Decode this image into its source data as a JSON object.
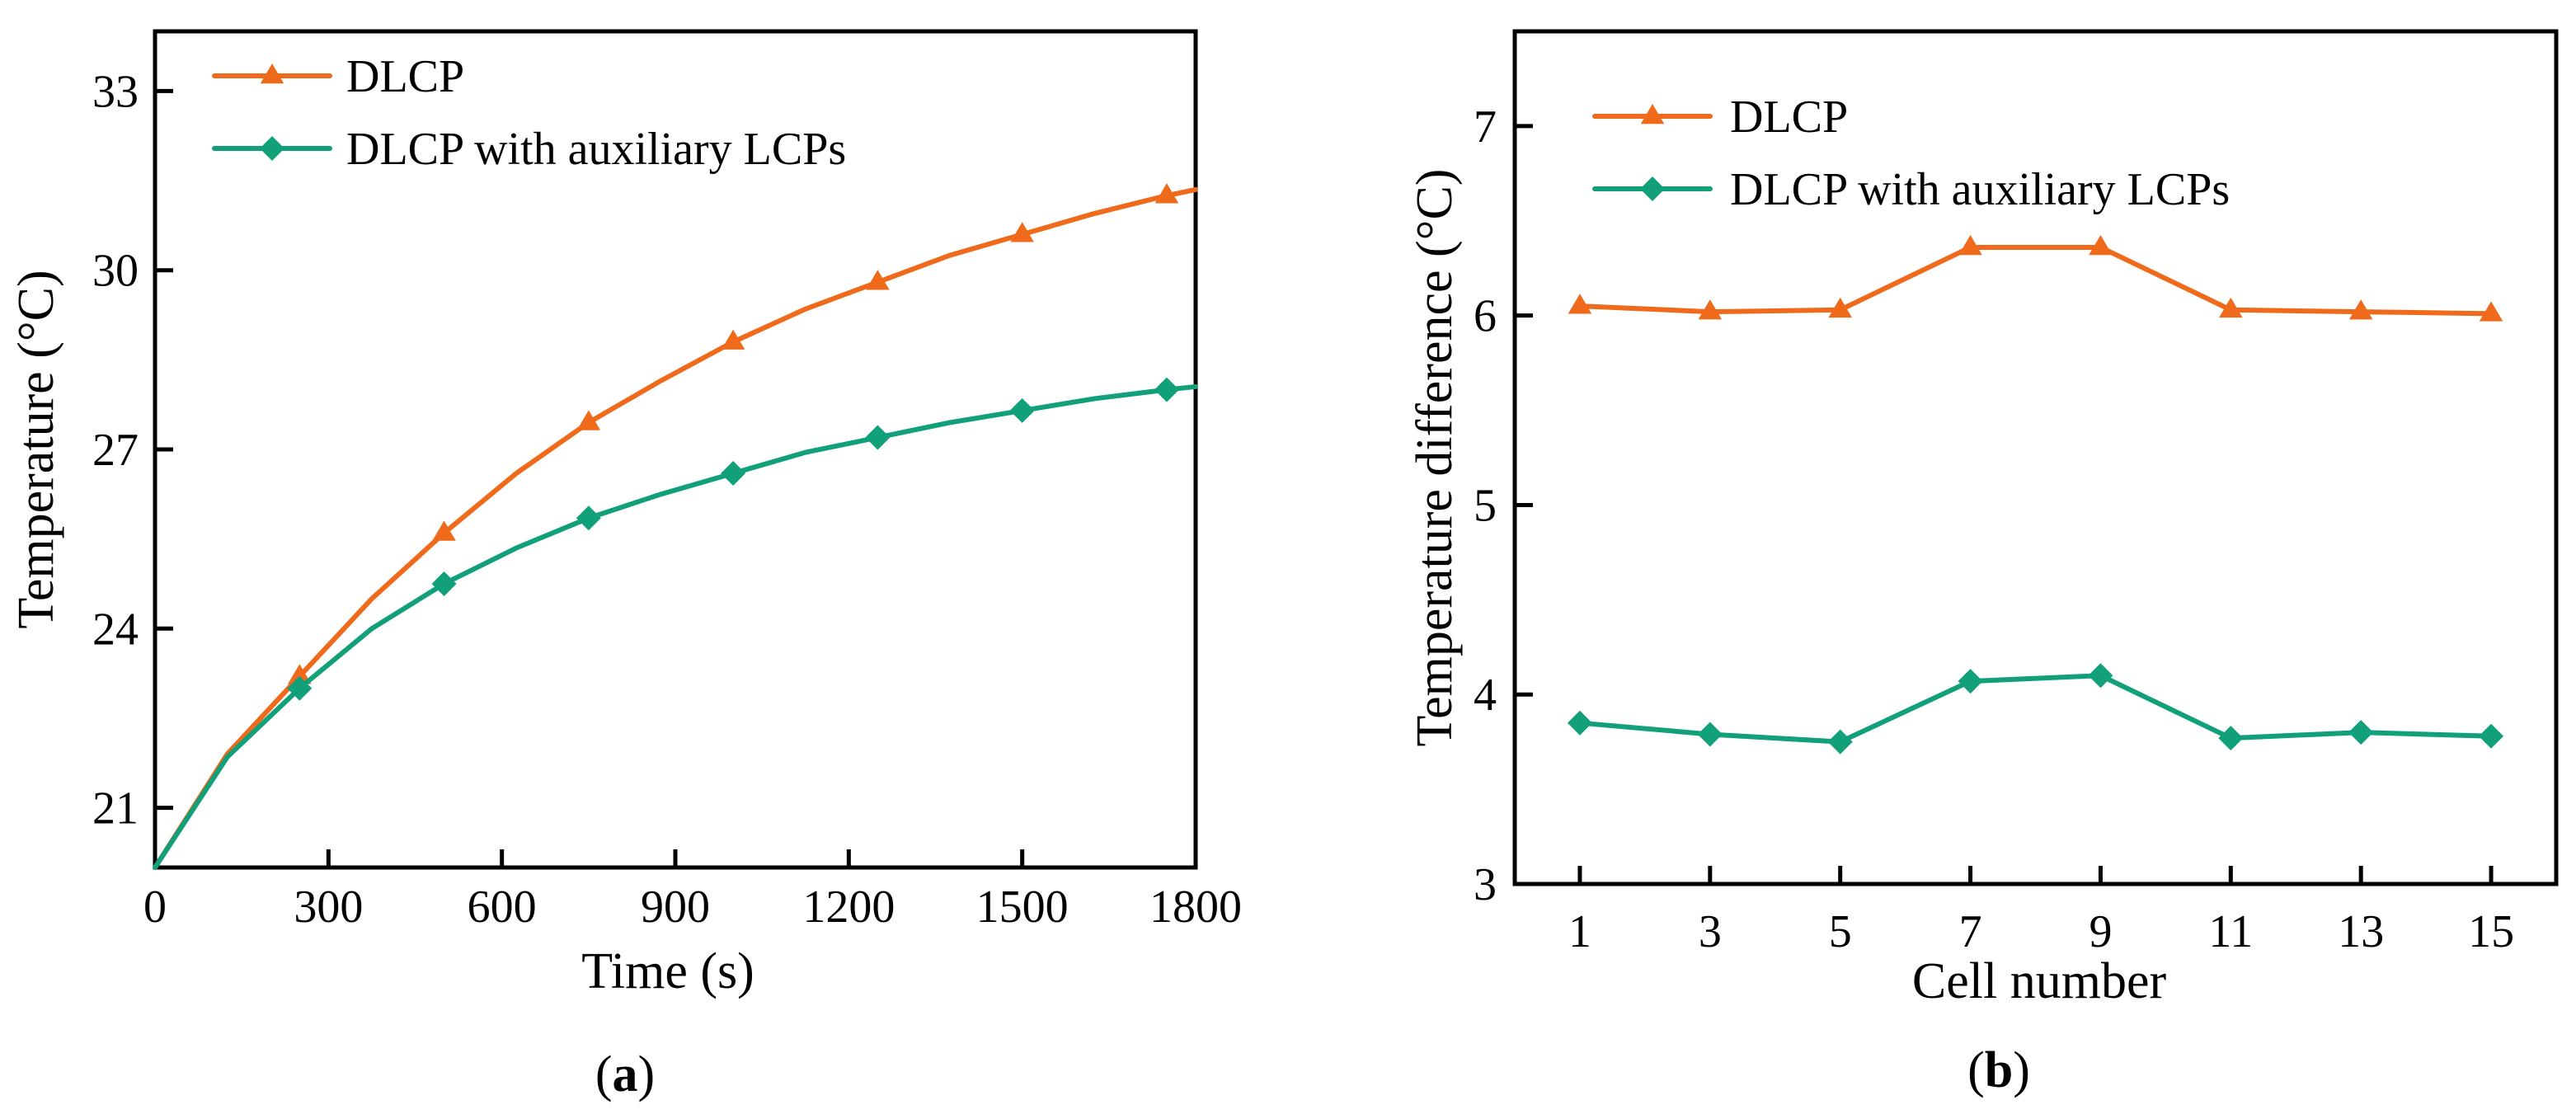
{
  "colors": {
    "dlcp": "#ef6a1a",
    "aux": "#12a07a"
  },
  "chart_data": [
    {
      "type": "line",
      "panel_label": "a",
      "xlabel": "Time (s)",
      "ylabel": "Temperature (°C)",
      "xlim": [
        0,
        1800
      ],
      "ylim": [
        20,
        34
      ],
      "xticks": [
        0,
        300,
        600,
        900,
        1200,
        1500,
        1800
      ],
      "yticks": [
        21,
        24,
        27,
        30,
        33
      ],
      "legend_position": "top-left",
      "series": [
        {
          "name": "DLCP",
          "marker": "triangle",
          "color": "#ef6a1a",
          "curve": [
            [
              0,
              20
            ],
            [
              125,
              21.9
            ],
            [
              250,
              23.2
            ],
            [
              375,
              24.5
            ],
            [
              500,
              25.6
            ],
            [
              625,
              26.6
            ],
            [
              750,
              27.45
            ],
            [
              875,
              28.15
            ],
            [
              1000,
              28.8
            ],
            [
              1125,
              29.35
            ],
            [
              1250,
              29.8
            ],
            [
              1375,
              30.25
            ],
            [
              1500,
              30.6
            ],
            [
              1625,
              30.95
            ],
            [
              1750,
              31.25
            ],
            [
              1800,
              31.35
            ]
          ],
          "points": [
            [
              250,
              23.2
            ],
            [
              500,
              25.6
            ],
            [
              750,
              27.45
            ],
            [
              1000,
              28.8
            ],
            [
              1250,
              29.8
            ],
            [
              1500,
              30.6
            ],
            [
              1750,
              31.25
            ]
          ]
        },
        {
          "name": "DLCP with auxiliary LCPs",
          "marker": "diamond",
          "color": "#12a07a",
          "curve": [
            [
              0,
              20
            ],
            [
              125,
              21.85
            ],
            [
              250,
              23.0
            ],
            [
              375,
              24.0
            ],
            [
              500,
              24.75
            ],
            [
              625,
              25.35
            ],
            [
              750,
              25.85
            ],
            [
              875,
              26.25
            ],
            [
              1000,
              26.6
            ],
            [
              1125,
              26.95
            ],
            [
              1250,
              27.2
            ],
            [
              1375,
              27.45
            ],
            [
              1500,
              27.65
            ],
            [
              1625,
              27.85
            ],
            [
              1750,
              28.0
            ],
            [
              1800,
              28.05
            ]
          ],
          "points": [
            [
              250,
              23.0
            ],
            [
              500,
              24.75
            ],
            [
              750,
              25.85
            ],
            [
              1000,
              26.6
            ],
            [
              1250,
              27.2
            ],
            [
              1500,
              27.65
            ],
            [
              1750,
              28.0
            ]
          ]
        }
      ]
    },
    {
      "type": "line",
      "panel_label": "b",
      "xlabel": "Cell number",
      "ylabel": "Temperature difference (°C)",
      "xlim": [
        0,
        16
      ],
      "ylim": [
        3,
        7.5
      ],
      "xticks": [
        1,
        3,
        5,
        7,
        9,
        11,
        13,
        15
      ],
      "yticks": [
        3,
        4,
        5,
        6,
        7
      ],
      "legend_position": "top-left",
      "series": [
        {
          "name": "DLCP",
          "marker": "triangle",
          "color": "#ef6a1a",
          "x": [
            1,
            3,
            5,
            7,
            9,
            11,
            13,
            15
          ],
          "values": [
            6.05,
            6.02,
            6.03,
            6.36,
            6.36,
            6.03,
            6.02,
            6.01
          ]
        },
        {
          "name": "DLCP with auxiliary LCPs",
          "marker": "diamond",
          "color": "#12a07a",
          "x": [
            1,
            3,
            5,
            7,
            9,
            11,
            13,
            15
          ],
          "values": [
            3.85,
            3.79,
            3.75,
            4.07,
            4.1,
            3.77,
            3.8,
            3.78
          ]
        }
      ]
    }
  ]
}
